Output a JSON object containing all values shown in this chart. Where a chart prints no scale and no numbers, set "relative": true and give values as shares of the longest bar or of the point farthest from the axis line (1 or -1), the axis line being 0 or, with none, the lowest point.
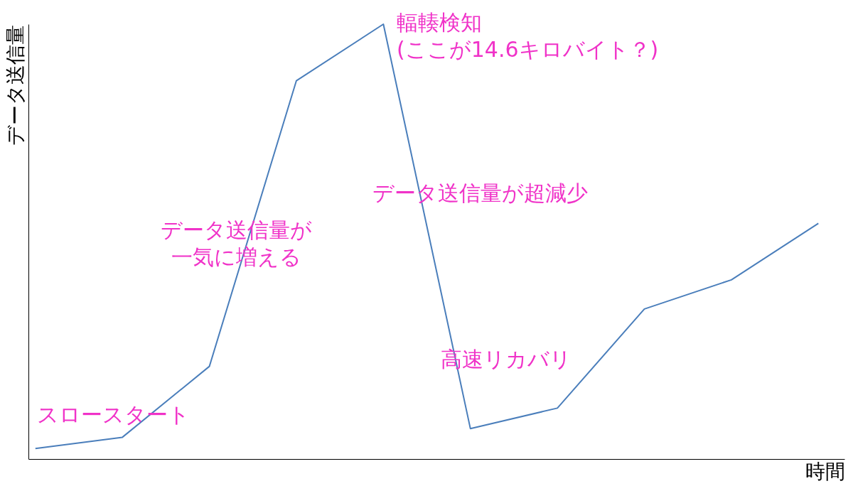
{
  "chart_data": {
    "type": "line",
    "relative": true,
    "xlabel": "時間",
    "ylabel": "データ送信量",
    "categories": [
      null,
      null,
      null,
      null,
      null,
      null,
      null,
      null,
      null,
      null
    ],
    "series": [
      {
        "color": "#4a7ebb",
        "values": [
          0.024,
          0.05,
          0.213,
          0.87,
          1.0,
          0.07,
          0.117,
          0.345,
          0.412,
          0.542
        ]
      }
    ],
    "annotations": [
      "輻輳検知(ここが14.6キロバイト？)",
      "データ送信量が超減少",
      "データ送信量が一気に増える",
      "高速リカバリ",
      "スロースタート"
    ],
    "grid": false,
    "marker": "none",
    "line_style": "solid"
  }
}
